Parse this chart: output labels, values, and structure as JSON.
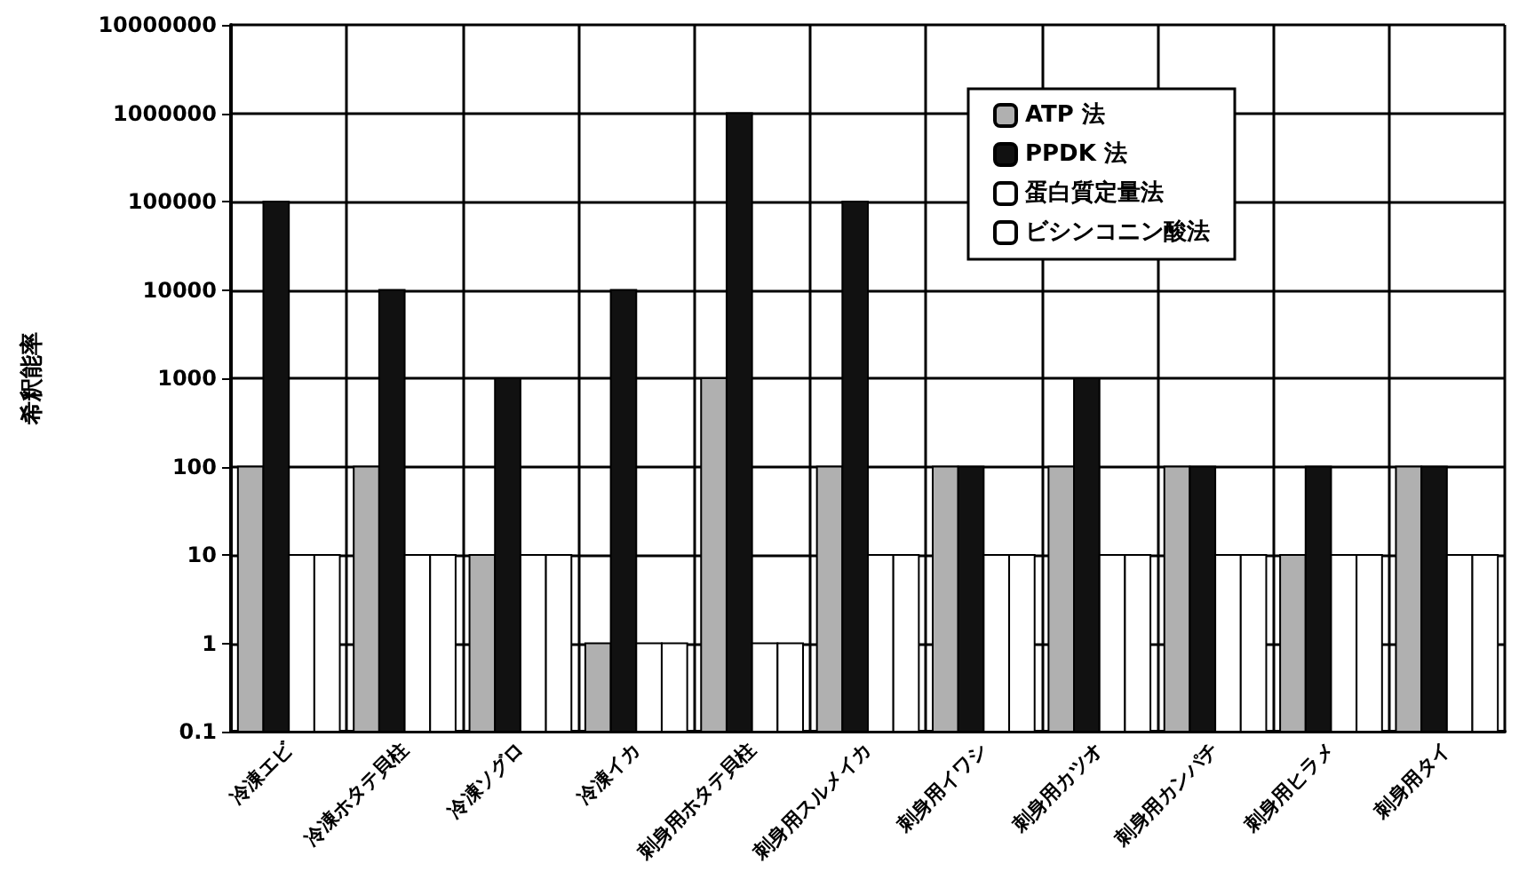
{
  "chart_data": {
    "type": "bar",
    "ylabel": "希釈能率",
    "categories": [
      "冷凍エビ",
      "冷凍ホタテ貝柱",
      "冷凍ソグロ",
      "冷凍イカ",
      "刺身用ホタテ貝柱",
      "刺身用スルメイカ",
      "刺身用イワシ",
      "刺身用カツオ",
      "刺身用カンパチ",
      "刺身用ヒラメ",
      "刺身用タイ"
    ],
    "series": [
      {
        "name": "ATP 法",
        "color": "#b0b0b0",
        "values": [
          100,
          100,
          10,
          1,
          1000,
          100,
          100,
          100,
          100,
          10,
          100
        ]
      },
      {
        "name": "PPDK 法",
        "color": "#111111",
        "values": [
          100000,
          10000,
          1000,
          10000,
          1000000,
          100000,
          100,
          1000,
          100,
          100,
          100
        ]
      },
      {
        "name": "蛋白質定量法",
        "color": "#ffffff",
        "values": [
          10,
          10,
          10,
          1,
          1,
          10,
          10,
          10,
          10,
          10,
          10
        ]
      },
      {
        "name": "ビシンコニン酸法",
        "color": "#ffffff",
        "values": [
          10,
          10,
          10,
          1,
          1,
          10,
          10,
          10,
          10,
          10,
          10
        ]
      }
    ],
    "log": true,
    "ylim": [
      0.1,
      10000000
    ],
    "yticks": [
      0.1,
      1,
      10,
      100,
      1000,
      10000,
      100000,
      1000000,
      10000000
    ],
    "grid": true,
    "legend": "top right"
  }
}
